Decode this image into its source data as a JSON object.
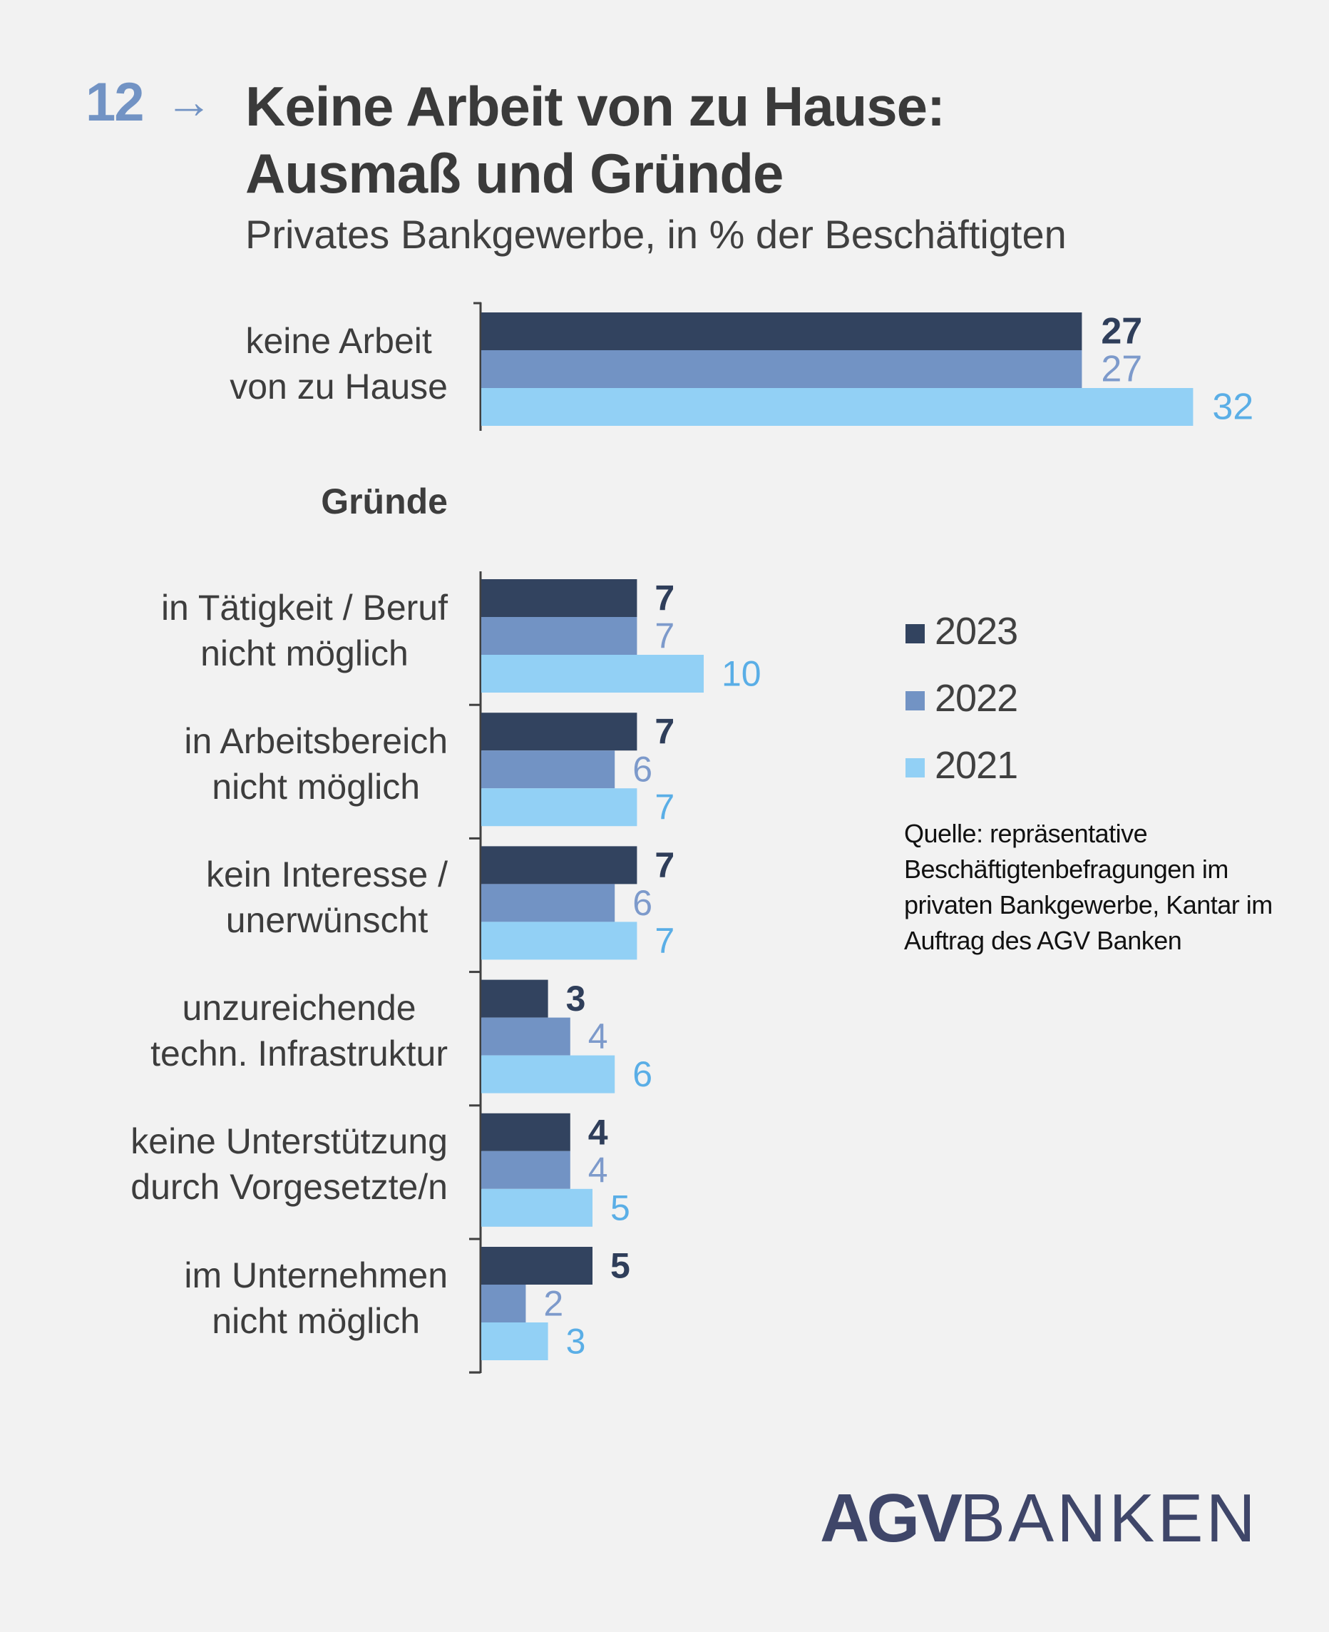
{
  "header": {
    "number": "12",
    "arrow": "→",
    "title": "Keine Arbeit von zu Hause:\nAusmaß und Gründe",
    "title_line1": "Keine Arbeit von zu Hause:",
    "title_line2": "Ausmaß und Gründe",
    "subtitle": "Privates Bankgewerbe, in % der Beschäftigten"
  },
  "colors": {
    "2023": "#32435f",
    "2022": "#7293c4",
    "2021": "#92d0f5",
    "label_2023": "#2f3e5a",
    "label_2022": "#7d9acb",
    "label_2021": "#5aaee6",
    "axis": "#404040"
  },
  "legend": [
    {
      "label": "2023",
      "color": "#32435f"
    },
    {
      "label": "2022",
      "color": "#7293c4"
    },
    {
      "label": "2021",
      "color": "#92d0f5"
    }
  ],
  "source": "Quelle: repräsentative Beschäftigtenbefragungen im privaten Bankgewerbe, Kantar im Auftrag des AGV Banken",
  "logo": {
    "bold": "AGV",
    "light": "BANKEN"
  },
  "chart_data": [
    {
      "type": "bar",
      "orientation": "horizontal",
      "title": "",
      "categories": [
        "keine Arbeit\nvon zu Hause"
      ],
      "series": [
        {
          "name": "2023",
          "values": [
            27
          ]
        },
        {
          "name": "2022",
          "values": [
            27
          ]
        },
        {
          "name": "2021",
          "values": [
            32
          ]
        }
      ],
      "xlabel": "",
      "ylabel": "",
      "xlim": [
        0,
        32
      ],
      "grid": false,
      "legend": "right"
    },
    {
      "type": "bar",
      "orientation": "horizontal",
      "title": "Gründe",
      "categories": [
        "in Tätigkeit / Beruf\nnicht möglich",
        "in Arbeitsbereich\nnicht möglich",
        "kein Interesse /\nunerwünscht",
        "unzureichende\ntechn. Infrastruktur",
        "keine Unterstützung\ndurch Vorgesetzte/n",
        "im Unternehmen\nnicht möglich"
      ],
      "series": [
        {
          "name": "2023",
          "values": [
            7,
            7,
            7,
            3,
            4,
            5
          ]
        },
        {
          "name": "2022",
          "values": [
            7,
            6,
            6,
            4,
            4,
            2
          ]
        },
        {
          "name": "2021",
          "values": [
            10,
            7,
            7,
            6,
            5,
            3
          ]
        }
      ],
      "xlabel": "",
      "ylabel": "",
      "xlim": [
        0,
        32
      ],
      "grid": false,
      "legend": "right"
    }
  ]
}
